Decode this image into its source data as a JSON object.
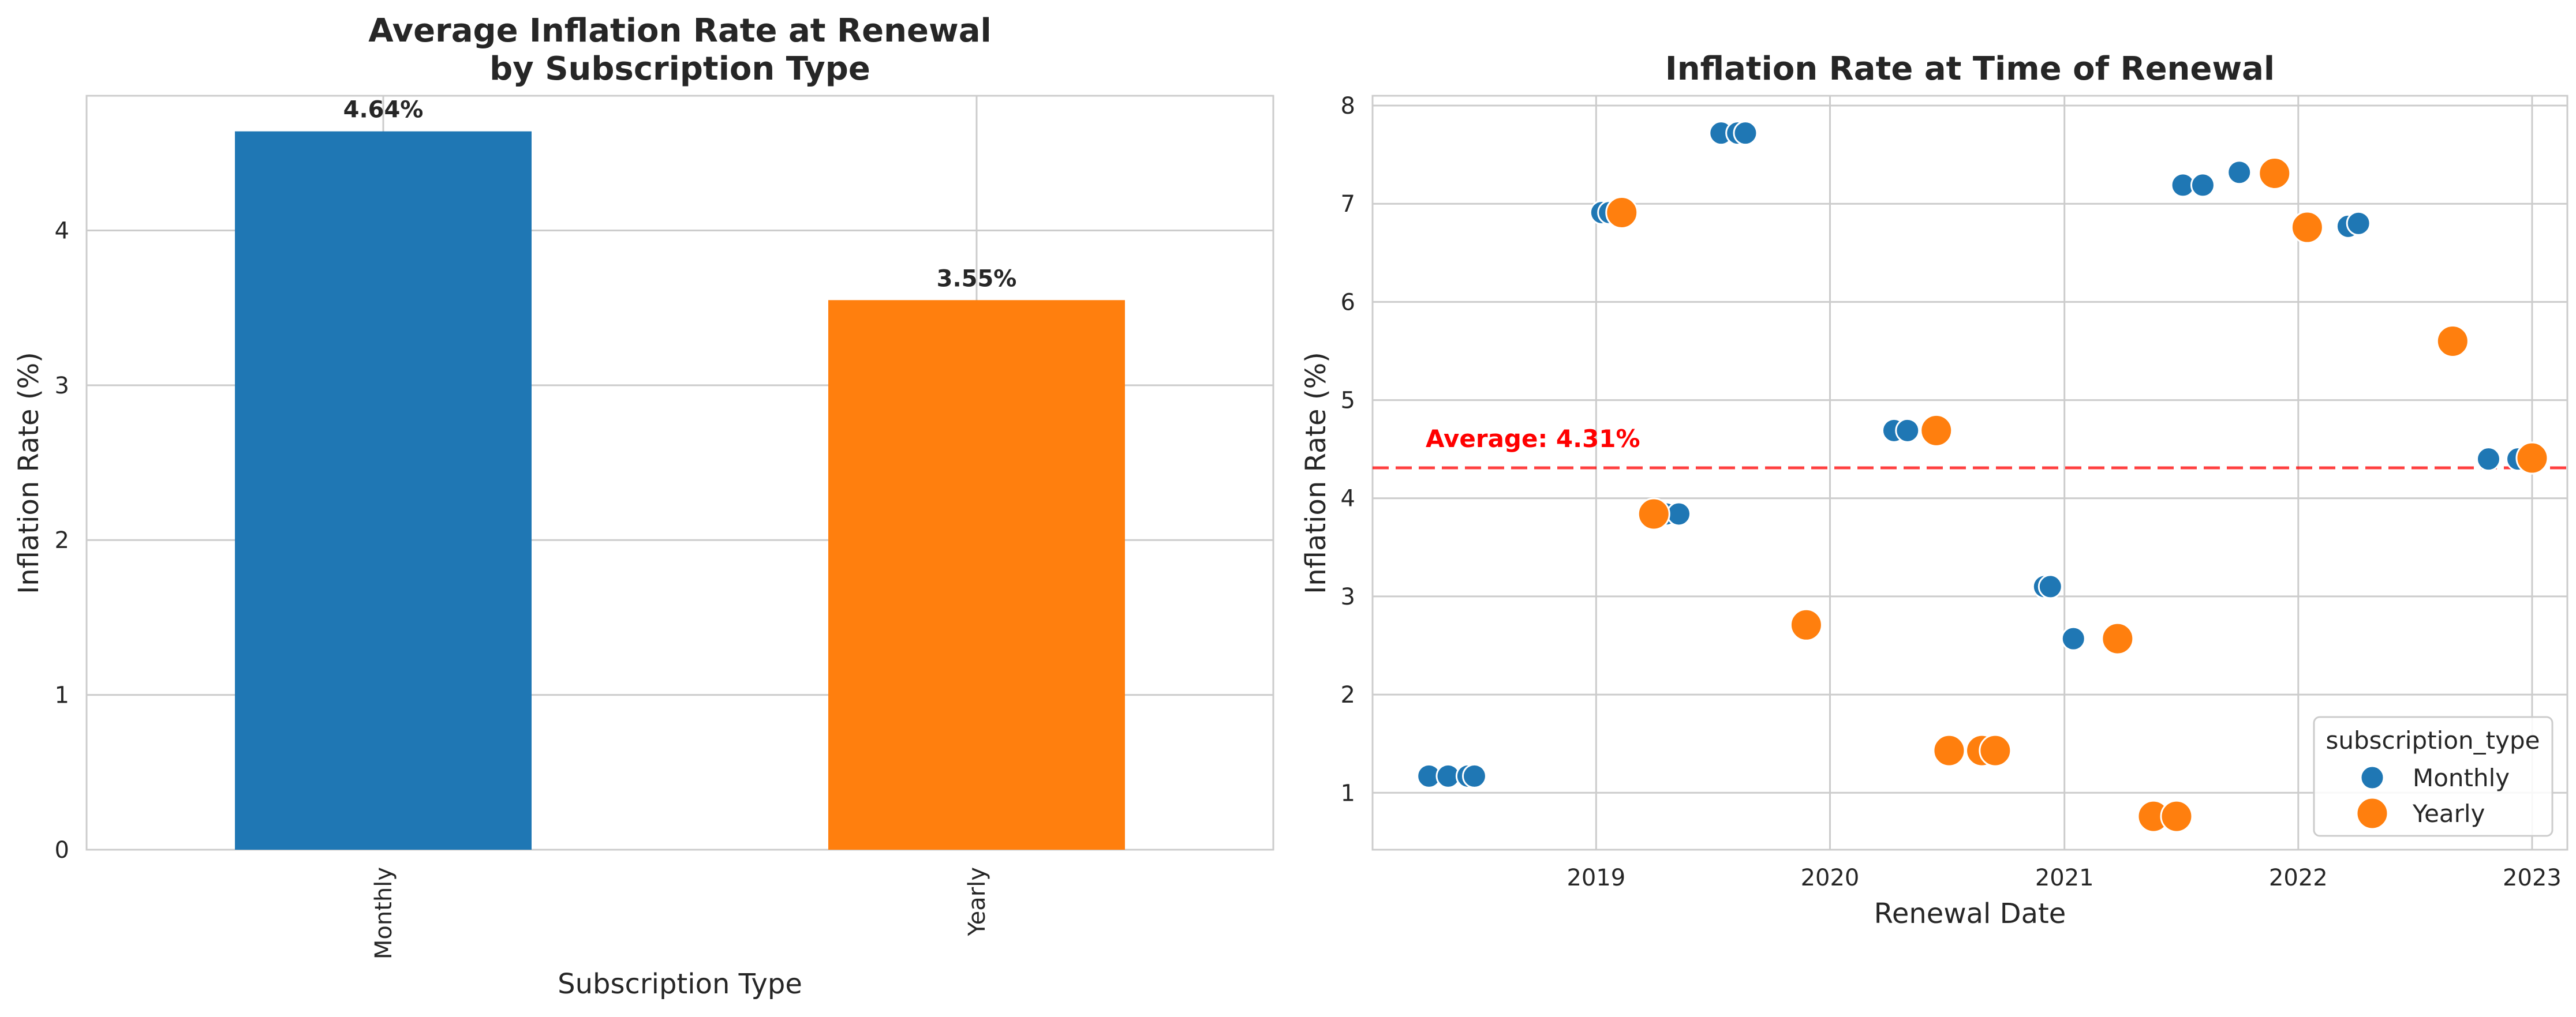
{
  "colors": {
    "monthly": "#1f77b4",
    "yearly": "#ff7f0e",
    "average_line": "#ff0000",
    "grid": "#cccccc",
    "text": "#262626"
  },
  "chart_data": [
    {
      "type": "bar",
      "title_lines": [
        "Average Inflation Rate at Renewal",
        "by Subscription Type"
      ],
      "xlabel": "Subscription Type",
      "ylabel": "Inflation Rate (%)",
      "categories": [
        "Monthly",
        "Yearly"
      ],
      "values": [
        4.64,
        3.55
      ],
      "value_labels": [
        "4.64%",
        "3.55%"
      ],
      "ylim": [
        0,
        4.87
      ],
      "yticks": [
        0,
        1,
        2,
        3,
        4
      ],
      "grid": true
    },
    {
      "type": "scatter",
      "title": "Inflation Rate at Time of Renewal",
      "xlabel": "Renewal Date",
      "ylabel": "Inflation Rate (%)",
      "xlim": [
        "2018-01-17",
        "2023-02-25"
      ],
      "xticks": [
        "2019",
        "2020",
        "2021",
        "2022",
        "2023"
      ],
      "ylim": [
        0.42,
        8.1
      ],
      "yticks": [
        1,
        2,
        3,
        4,
        5,
        6,
        7,
        8
      ],
      "grid": true,
      "legend": {
        "title": "subscription_type",
        "position": "lower-right",
        "entries": [
          "Monthly",
          "Yearly"
        ]
      },
      "average": {
        "value": 4.31,
        "label": "Average: 4.31%"
      },
      "series": [
        {
          "name": "Monthly",
          "points": [
            [
              "2018-04-15",
              1.17
            ],
            [
              "2018-05-15",
              1.17
            ],
            [
              "2018-06-15",
              1.17
            ],
            [
              "2018-06-25",
              1.17
            ],
            [
              "2019-01-10",
              6.91
            ],
            [
              "2019-01-22",
              6.91
            ],
            [
              "2019-04-20",
              3.84
            ],
            [
              "2019-05-10",
              3.84
            ],
            [
              "2019-07-15",
              7.72
            ],
            [
              "2019-08-10",
              7.72
            ],
            [
              "2019-08-22",
              7.72
            ],
            [
              "2019-12-01",
              2.72
            ],
            [
              "2020-04-10",
              4.69
            ],
            [
              "2020-05-01",
              4.69
            ],
            [
              "2020-12-01",
              3.1
            ],
            [
              "2020-12-10",
              3.1
            ],
            [
              "2021-01-15",
              2.57
            ],
            [
              "2021-03-20",
              2.57
            ],
            [
              "2021-05-25",
              0.76
            ],
            [
              "2021-07-05",
              7.19
            ],
            [
              "2021-08-05",
              7.19
            ],
            [
              "2021-10-01",
              7.32
            ],
            [
              "2021-12-01",
              7.32
            ],
            [
              "2022-03-20",
              6.77
            ],
            [
              "2022-04-05",
              6.8
            ],
            [
              "2022-10-25",
              4.4
            ],
            [
              "2022-12-10",
              4.4
            ]
          ]
        },
        {
          "name": "Yearly",
          "points": [
            [
              "2019-02-10",
              6.91
            ],
            [
              "2019-04-01",
              3.84
            ],
            [
              "2019-11-25",
              2.71
            ],
            [
              "2020-06-15",
              4.69
            ],
            [
              "2020-07-05",
              1.43
            ],
            [
              "2020-08-25",
              1.43
            ],
            [
              "2020-09-15",
              1.43
            ],
            [
              "2021-03-25",
              2.57
            ],
            [
              "2021-05-20",
              0.76
            ],
            [
              "2021-06-25",
              0.76
            ],
            [
              "2021-11-25",
              7.31
            ],
            [
              "2022-01-15",
              6.76
            ],
            [
              "2022-08-30",
              5.6
            ],
            [
              "2023-01-01",
              4.41
            ]
          ]
        }
      ]
    }
  ]
}
